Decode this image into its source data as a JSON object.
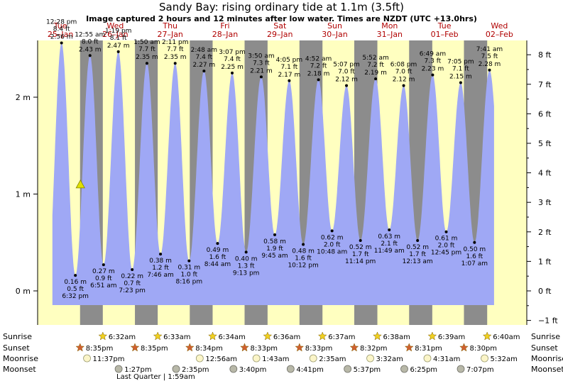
{
  "title": "Sandy Bay: rising  ordinary tide at 1.1m (3.5ft)",
  "subtitle": "Image captured 2 hours and 12 minutes after low water. Times are NZDT (UTC +13.0hrs)",
  "colors": {
    "day": "#ffffc0",
    "night": "#8c8c8c",
    "tide": "#9fa8f5",
    "daylabel": "#b00000",
    "marker": "#e0e000"
  },
  "chart_data": {
    "type": "area",
    "title": "Sandy Bay: rising  ordinary tide at 1.1m (3.5ft)",
    "x_unit": "hours from 25-Jan 00:00 NZDT",
    "y_left": {
      "label": "m",
      "ticks": [
        {
          "v": 0,
          "label": "0 m"
        },
        {
          "v": 1,
          "label": "1 m"
        },
        {
          "v": 2,
          "label": "2 m"
        }
      ],
      "ylim": [
        -0.2,
        2.6
      ]
    },
    "y_right": {
      "label": "ft",
      "ticks": [
        "−1 ft",
        "0 ft",
        "1 ft",
        "2 ft",
        "3 ft",
        "4 ft",
        "5 ft",
        "6 ft",
        "7 ft",
        "8 ft"
      ]
    },
    "current": {
      "t": 20.73,
      "h": 1.1
    },
    "days": [
      {
        "name": "Tue",
        "date": "25–Jan"
      },
      {
        "name": "Wed",
        "date": "26–Jan"
      },
      {
        "name": "Thu",
        "date": "27–Jan"
      },
      {
        "name": "Fri",
        "date": "28–Jan"
      },
      {
        "name": "Sat",
        "date": "29–Jan"
      },
      {
        "name": "Sun",
        "date": "30–Jan"
      },
      {
        "name": "Mon",
        "date": "31–Jan"
      },
      {
        "name": "Tue",
        "date": "01–Feb"
      },
      {
        "name": "Wed",
        "date": "02–Feb"
      }
    ],
    "tides": [
      {
        "t": 12.47,
        "h": 2.56,
        "m": "2.56 m",
        "ft": "8.4 ft",
        "time": "12:28 pm",
        "type": "high"
      },
      {
        "t": 18.53,
        "h": 0.16,
        "m": "0.16 m",
        "ft": "0.5 ft",
        "time": "6:32 pm",
        "type": "low"
      },
      {
        "t": 24.92,
        "h": 2.43,
        "m": "2.43 m",
        "ft": "8.0 ft",
        "time": "12:55 am",
        "type": "high"
      },
      {
        "t": 30.85,
        "h": 0.27,
        "m": "0.27 m",
        "ft": "0.9 ft",
        "time": "6:51 am",
        "type": "low"
      },
      {
        "t": 37.32,
        "h": 2.47,
        "m": "2.47 m",
        "ft": "8.1 ft",
        "time": "1:19 pm",
        "type": "high"
      },
      {
        "t": 43.38,
        "h": 0.22,
        "m": "0.22 m",
        "ft": "0.7 ft",
        "time": "7:23 pm",
        "type": "low"
      },
      {
        "t": 49.83,
        "h": 2.35,
        "m": "2.35 m",
        "ft": "7.7 ft",
        "time": "1:50 am",
        "type": "high"
      },
      {
        "t": 55.77,
        "h": 0.38,
        "m": "0.38 m",
        "ft": "1.2 ft",
        "time": "7:46 am",
        "type": "low"
      },
      {
        "t": 62.18,
        "h": 2.35,
        "m": "2.35 m",
        "ft": "7.7 ft",
        "time": "2:11 pm",
        "type": "high"
      },
      {
        "t": 68.27,
        "h": 0.31,
        "m": "0.31 m",
        "ft": "1.0 ft",
        "time": "8:16 pm",
        "type": "low"
      },
      {
        "t": 74.8,
        "h": 2.27,
        "m": "2.27 m",
        "ft": "7.4 ft",
        "time": "2:48 am",
        "type": "high"
      },
      {
        "t": 80.73,
        "h": 0.49,
        "m": "0.49 m",
        "ft": "1.6 ft",
        "time": "8:44 am",
        "type": "low"
      },
      {
        "t": 87.12,
        "h": 2.25,
        "m": "2.25 m",
        "ft": "7.4 ft",
        "time": "3:07 pm",
        "type": "high"
      },
      {
        "t": 93.22,
        "h": 0.4,
        "m": "0.40 m",
        "ft": "1.3 ft",
        "time": "9:13 pm",
        "type": "low"
      },
      {
        "t": 99.83,
        "h": 2.21,
        "m": "2.21 m",
        "ft": "7.3 ft",
        "time": "3:50 am",
        "type": "high"
      },
      {
        "t": 105.75,
        "h": 0.58,
        "m": "0.58 m",
        "ft": "1.9 ft",
        "time": "9:45 am",
        "type": "low"
      },
      {
        "t": 112.08,
        "h": 2.17,
        "m": "2.17 m",
        "ft": "7.1 ft",
        "time": "4:05 pm",
        "type": "high"
      },
      {
        "t": 118.2,
        "h": 0.48,
        "m": "0.48 m",
        "ft": "1.6 ft",
        "time": "10:12 pm",
        "type": "low"
      },
      {
        "t": 124.87,
        "h": 2.18,
        "m": "2.18 m",
        "ft": "7.2 ft",
        "time": "4:52 am",
        "type": "high"
      },
      {
        "t": 130.8,
        "h": 0.62,
        "m": "0.62 m",
        "ft": "2.0 ft",
        "time": "10:48 am",
        "type": "low"
      },
      {
        "t": 137.12,
        "h": 2.12,
        "m": "2.12 m",
        "ft": "7.0 ft",
        "time": "5:07 pm",
        "type": "high"
      },
      {
        "t": 143.23,
        "h": 0.52,
        "m": "0.52 m",
        "ft": "1.7 ft",
        "time": "11:14 pm",
        "type": "low"
      },
      {
        "t": 149.87,
        "h": 2.19,
        "m": "2.19 m",
        "ft": "7.2 ft",
        "time": "5:52 am",
        "type": "high"
      },
      {
        "t": 155.82,
        "h": 0.63,
        "m": "0.63 m",
        "ft": "2.1 ft",
        "time": "11:49 am",
        "type": "low"
      },
      {
        "t": 162.13,
        "h": 2.12,
        "m": "2.12 m",
        "ft": "7.0 ft",
        "time": "6:08 pm",
        "type": "high"
      },
      {
        "t": 168.22,
        "h": 0.52,
        "m": "0.52 m",
        "ft": "1.7 ft",
        "time": "12:13 am",
        "type": "low"
      },
      {
        "t": 174.82,
        "h": 2.23,
        "m": "2.23 m",
        "ft": "7.3 ft",
        "time": "6:49 am",
        "type": "high"
      },
      {
        "t": 180.75,
        "h": 0.61,
        "m": "0.61 m",
        "ft": "2.0 ft",
        "time": "12:45 pm",
        "type": "low"
      },
      {
        "t": 187.08,
        "h": 2.15,
        "m": "2.15 m",
        "ft": "7.1 ft",
        "time": "7:05 pm",
        "type": "high"
      },
      {
        "t": 193.12,
        "h": 0.5,
        "m": "0.50 m",
        "ft": "1.6 ft",
        "time": "1:07 am",
        "type": "low"
      },
      {
        "t": 199.68,
        "h": 2.28,
        "m": "2.28 m",
        "ft": "7.5 ft",
        "time": "7:41 am",
        "type": "high"
      }
    ],
    "rows": {
      "sunrise": "Sunrise",
      "sunset": "Sunset",
      "moonrise": "Moonrise",
      "moonset": "Moonset"
    },
    "sunrise": [
      {
        "t": 30.53,
        "label": "6:32am"
      },
      {
        "t": 54.55,
        "label": "6:33am"
      },
      {
        "t": 78.57,
        "label": "6:34am"
      },
      {
        "t": 102.6,
        "label": "6:36am"
      },
      {
        "t": 126.62,
        "label": "6:37am"
      },
      {
        "t": 150.63,
        "label": "6:38am"
      },
      {
        "t": 174.65,
        "label": "6:39am"
      },
      {
        "t": 198.67,
        "label": "6:40am"
      }
    ],
    "sunset": [
      {
        "t": 20.58,
        "label": "8:35pm"
      },
      {
        "t": 44.58,
        "label": "8:35pm"
      },
      {
        "t": 68.57,
        "label": "8:34pm"
      },
      {
        "t": 92.55,
        "label": "8:33pm"
      },
      {
        "t": 116.55,
        "label": "8:33pm"
      },
      {
        "t": 140.53,
        "label": "8:32pm"
      },
      {
        "t": 164.52,
        "label": "8:31pm"
      },
      {
        "t": 188.5,
        "label": "8:30pm"
      }
    ],
    "moonrise": [
      {
        "t": 23.62,
        "label": "11:37pm"
      },
      {
        "t": 72.93,
        "label": "12:56am"
      },
      {
        "t": 97.72,
        "label": "1:43am"
      },
      {
        "t": 122.58,
        "label": "2:35am"
      },
      {
        "t": 147.53,
        "label": "3:32am"
      },
      {
        "t": 172.52,
        "label": "4:31am"
      },
      {
        "t": 197.53,
        "label": "5:32am"
      }
    ],
    "moonset": [
      {
        "t": 37.45,
        "label": "1:27pm"
      },
      {
        "t": 62.58,
        "label": "2:35pm"
      },
      {
        "t": 87.67,
        "label": "3:40pm"
      },
      {
        "t": 112.68,
        "label": "4:41pm"
      },
      {
        "t": 137.62,
        "label": "5:37pm"
      },
      {
        "t": 162.42,
        "label": "6:25pm"
      },
      {
        "t": 187.12,
        "label": "7:07pm"
      }
    ],
    "moon_phase": {
      "label": "Last Quarter | 1:59am"
    }
  }
}
